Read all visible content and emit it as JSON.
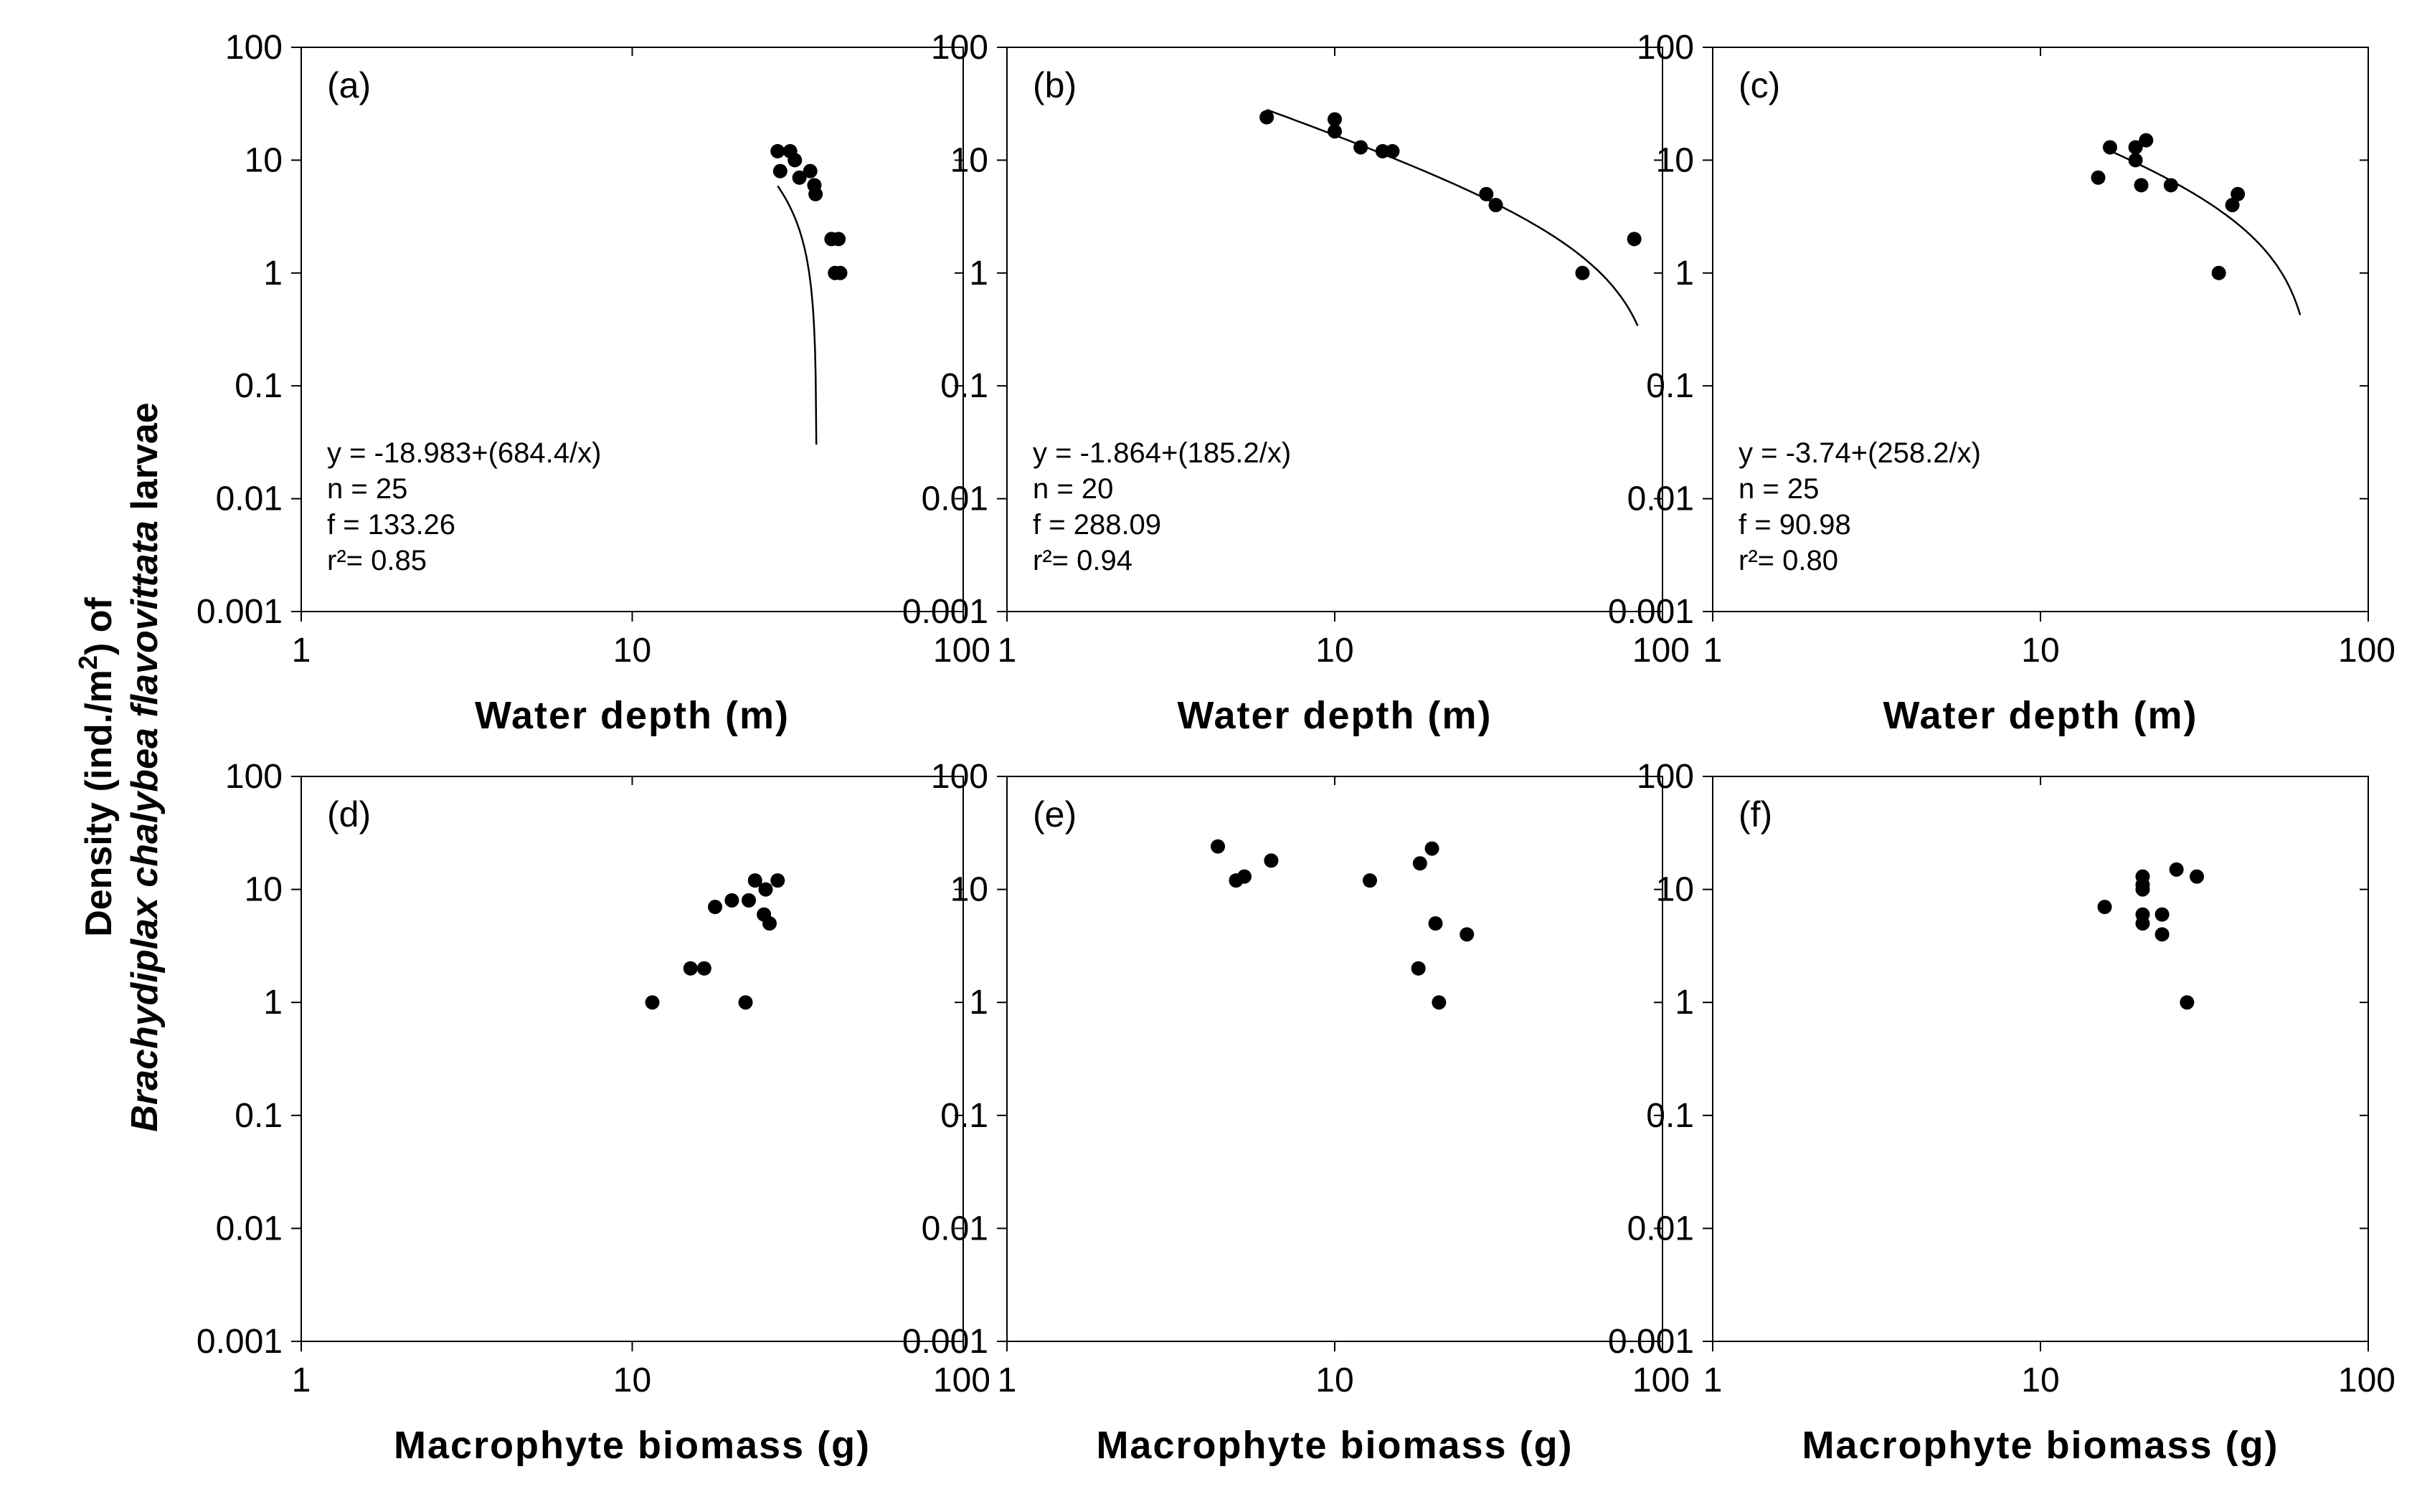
{
  "ylabel": {
    "line1_prefix": "Density (ind./m",
    "line1_sup": "2",
    "line1_suffix": ") of",
    "line2_italic": "Brachydiplax chalybea flavovittata",
    "line2_normal": " larvae"
  },
  "chart_data": [
    {
      "panel": "(a)",
      "type": "scatter",
      "xscale": "log",
      "yscale": "log",
      "xlim": [
        1,
        100
      ],
      "ylim": [
        0.001,
        100
      ],
      "xticks": [
        "1",
        "10",
        "100"
      ],
      "yticks": [
        "0.001",
        "0.01",
        "0.1",
        "1",
        "10",
        "100"
      ],
      "xlabel": "Water depth (m)",
      "points": [
        [
          27.5,
          12
        ],
        [
          30,
          12
        ],
        [
          31,
          10
        ],
        [
          28,
          8
        ],
        [
          32,
          7
        ],
        [
          34.5,
          8
        ],
        [
          35.5,
          6
        ],
        [
          35.8,
          5
        ],
        [
          40,
          2
        ],
        [
          42,
          2
        ],
        [
          41,
          1
        ],
        [
          42.5,
          1
        ]
      ],
      "fit": {
        "a": -18.983,
        "b": 684.4,
        "x_range": [
          27.5,
          48
        ]
      },
      "stats": [
        "y = -18.983+(684.4/x)",
        "n = 25",
        "f  = 133.26",
        "r²= 0.85"
      ]
    },
    {
      "panel": "(b)",
      "type": "scatter",
      "xscale": "log",
      "yscale": "log",
      "xlim": [
        1,
        100
      ],
      "ylim": [
        0.001,
        100
      ],
      "xticks": [
        "1",
        "10",
        "100"
      ],
      "yticks": [
        "0.001",
        "0.01",
        "0.1",
        "1",
        "10",
        "100"
      ],
      "xlabel": "Water depth (m)",
      "points": [
        [
          6.2,
          24
        ],
        [
          10,
          23
        ],
        [
          10,
          18
        ],
        [
          12,
          13
        ],
        [
          14,
          12
        ],
        [
          15,
          12
        ],
        [
          29,
          5
        ],
        [
          31,
          4
        ],
        [
          57,
          1
        ],
        [
          82,
          2
        ]
      ],
      "fit": {
        "a": -1.864,
        "b": 185.2,
        "x_range": [
          6.2,
          84
        ]
      },
      "stats": [
        "y = -1.864+(185.2/x)",
        "n = 20",
        "f  = 288.09",
        "r²= 0.94"
      ]
    },
    {
      "panel": "(c)",
      "type": "scatter",
      "xscale": "log",
      "yscale": "log",
      "xlim": [
        1,
        100
      ],
      "ylim": [
        0.001,
        100
      ],
      "xticks": [
        "1",
        "10",
        "100"
      ],
      "yticks": [
        "0.001",
        "0.01",
        "0.1",
        "1",
        "10",
        "100"
      ],
      "xlabel": "Water depth (m)",
      "points": [
        [
          15,
          7
        ],
        [
          16.3,
          13
        ],
        [
          19.5,
          13
        ],
        [
          21,
          15
        ],
        [
          19.5,
          10
        ],
        [
          20.3,
          6
        ],
        [
          25,
          6
        ],
        [
          35,
          1
        ],
        [
          38.5,
          4
        ],
        [
          40,
          5
        ]
      ],
      "fit": {
        "a": -3.74,
        "b": 258.2,
        "x_range": [
          16,
          62
        ]
      },
      "stats": [
        "y = -3.74+(258.2/x)",
        "n = 25",
        "f  = 90.98",
        "r²= 0.80"
      ]
    },
    {
      "panel": "(d)",
      "type": "scatter",
      "xscale": "log",
      "yscale": "log",
      "xlim": [
        1,
        100
      ],
      "ylim": [
        0.001,
        100
      ],
      "xticks": [
        "1",
        "10",
        "100"
      ],
      "yticks": [
        "0.001",
        "0.01",
        "0.1",
        "1",
        "10",
        "100"
      ],
      "xlabel": "Macrophyte biomass (g)",
      "points": [
        [
          11.5,
          1
        ],
        [
          15,
          2
        ],
        [
          16.5,
          2
        ],
        [
          17.8,
          7
        ],
        [
          20,
          8
        ],
        [
          22.5,
          8
        ],
        [
          23.5,
          12
        ],
        [
          25.3,
          10
        ],
        [
          27.5,
          12
        ],
        [
          25,
          6
        ],
        [
          26,
          5
        ],
        [
          22,
          1
        ]
      ]
    },
    {
      "panel": "(e)",
      "type": "scatter",
      "xscale": "log",
      "yscale": "log",
      "xlim": [
        1,
        100
      ],
      "ylim": [
        0.001,
        100
      ],
      "xticks": [
        "1",
        "10",
        "100"
      ],
      "yticks": [
        "0.001",
        "0.01",
        "0.1",
        "1",
        "10",
        "100"
      ],
      "xlabel": "Macrophyte biomass (g)",
      "points": [
        [
          4.4,
          24
        ],
        [
          5,
          12
        ],
        [
          5.3,
          13
        ],
        [
          6.4,
          18
        ],
        [
          12.8,
          12
        ],
        [
          18.2,
          17
        ],
        [
          19.8,
          23
        ],
        [
          20.3,
          5
        ],
        [
          25.3,
          4
        ],
        [
          18,
          2
        ],
        [
          20.8,
          1
        ]
      ]
    },
    {
      "panel": "(f)",
      "type": "scatter",
      "xscale": "log",
      "yscale": "log",
      "xlim": [
        1,
        100
      ],
      "ylim": [
        0.001,
        100
      ],
      "xticks": [
        "1",
        "10",
        "100"
      ],
      "yticks": [
        "0.001",
        "0.01",
        "0.1",
        "1",
        "10",
        "100"
      ],
      "xlabel": "Macrophyte biomass (g)",
      "points": [
        [
          15.7,
          7
        ],
        [
          20.5,
          13
        ],
        [
          20.5,
          11
        ],
        [
          20.5,
          10
        ],
        [
          20.5,
          6
        ],
        [
          20.5,
          5
        ],
        [
          23.5,
          6
        ],
        [
          23.5,
          4
        ],
        [
          26,
          15
        ],
        [
          30,
          13
        ],
        [
          28,
          1
        ]
      ]
    }
  ]
}
